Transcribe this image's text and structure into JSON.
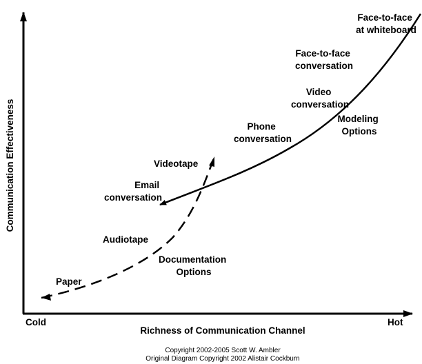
{
  "axes": {
    "y_label": "Communication Effectiveness",
    "x_label": "Richness of Communication Channel",
    "x_min_label": "Cold",
    "x_max_label": "Hot"
  },
  "modeling_curve": {
    "style": "solid",
    "group_label": [
      "Modeling",
      "Options"
    ],
    "points": [
      {
        "label": [
          "Face-to-face",
          "at whiteboard"
        ]
      },
      {
        "label": [
          "Face-to-face",
          "conversation"
        ]
      },
      {
        "label": [
          "Video",
          "conversation"
        ]
      },
      {
        "label": [
          "Phone",
          "conversation"
        ]
      },
      {
        "label": [
          "Email",
          "conversation"
        ]
      }
    ]
  },
  "documentation_curve": {
    "style": "dashed",
    "group_label": [
      "Documentation",
      "Options"
    ],
    "points": [
      {
        "label": [
          "Videotape"
        ]
      },
      {
        "label": [
          "Audiotape"
        ]
      },
      {
        "label": [
          "Paper"
        ]
      }
    ]
  },
  "copyright": [
    "Copyright 2002-2005 Scott W. Ambler",
    "Original Diagram Copyright 2002 Alistair Cockburn"
  ],
  "colors": {
    "line": "#000000",
    "background": "#ffffff"
  }
}
